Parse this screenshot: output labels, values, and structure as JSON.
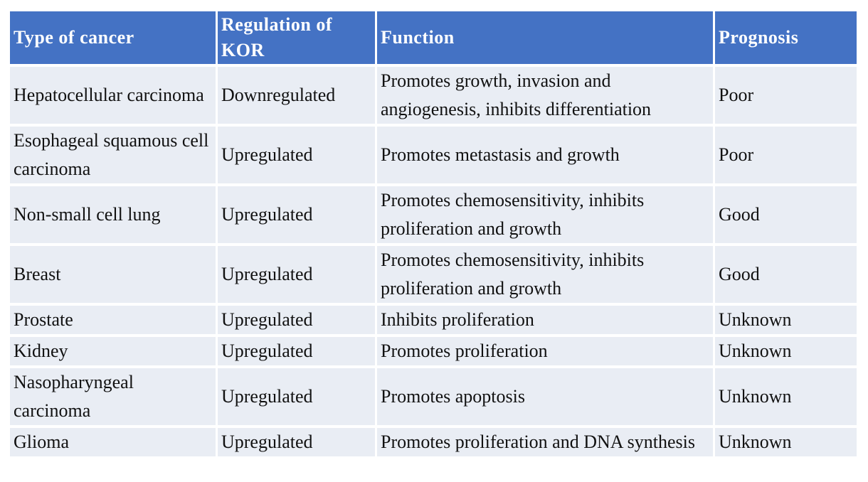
{
  "table": {
    "header": [
      "Type of cancer",
      "Regulation of KOR",
      "Function",
      "Prognosis"
    ],
    "rows": [
      [
        "Hepatocellular carcinoma",
        "Downregulated",
        "Promotes growth, invasion and angiogenesis, inhibits differentiation",
        "Poor"
      ],
      [
        "Esophageal squamous cell carcinoma",
        "Upregulated",
        "Promotes metastasis and growth",
        "Poor"
      ],
      [
        "Non-small cell lung",
        "Upregulated",
        "Promotes chemosensitivity, inhibits proliferation and growth",
        "Good"
      ],
      [
        "Breast",
        "Upregulated",
        "Promotes chemosensitivity, inhibits proliferation and growth",
        "Good"
      ],
      [
        "Prostate",
        "Upregulated",
        "Inhibits proliferation",
        "Unknown"
      ],
      [
        "Kidney",
        "Upregulated",
        "Promotes proliferation",
        "Unknown"
      ],
      [
        "Nasopharyngeal carcinoma",
        "Upregulated",
        "Promotes apoptosis",
        "Unknown"
      ],
      [
        "Glioma",
        "Upregulated",
        "Promotes proliferation and DNA synthesis",
        "Unknown"
      ]
    ]
  }
}
